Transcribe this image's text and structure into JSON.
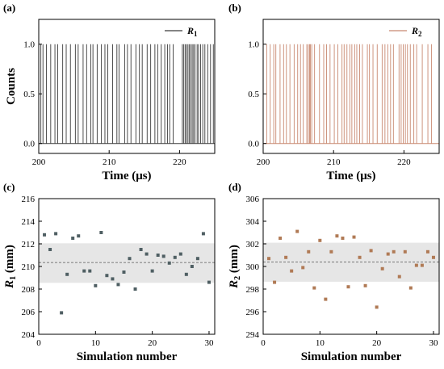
{
  "chart_data": [
    {
      "panel": "(a)",
      "type": "line",
      "subtype": "spike-train",
      "xlabel": "Time (μs)",
      "ylabel": "Counts",
      "xlim": [
        200,
        225
      ],
      "ylim": [
        -0.1,
        1.25
      ],
      "xticks": [
        200,
        210,
        220
      ],
      "yticks": [
        "0.0",
        "0.5",
        "1.0"
      ],
      "legend": {
        "text": "R",
        "sub": "1",
        "placement": "top-right"
      },
      "series": [
        {
          "name": "R1",
          "color": "#3a3a3a",
          "spike_times": [
            200.3,
            200.6,
            201.1,
            201.7,
            202.3,
            202.7,
            203.4,
            203.9,
            204.5,
            205.2,
            205.6,
            206.3,
            206.8,
            207.4,
            207.7,
            208.3,
            208.9,
            209.4,
            209.8,
            210.5,
            211.1,
            211.4,
            212.2,
            212.6,
            213.1,
            213.8,
            214.3,
            214.7,
            215.4,
            215.9,
            216.5,
            216.9,
            217.4,
            217.9,
            218.3,
            218.6,
            219.1,
            220.4,
            220.6,
            220.8,
            221.0,
            221.2,
            221.4,
            221.6,
            221.8,
            222.0,
            222.2,
            222.5,
            222.7,
            223.0,
            223.3,
            223.6,
            224.0,
            224.4,
            224.8
          ]
        }
      ]
    },
    {
      "panel": "(b)",
      "type": "line",
      "subtype": "spike-train",
      "xlabel": "Time (μs)",
      "ylabel": "",
      "xlim": [
        200,
        225
      ],
      "ylim": [
        -0.1,
        1.25
      ],
      "xticks": [
        200,
        210,
        220
      ],
      "yticks": [
        "0.0",
        "0.5",
        "1.0"
      ],
      "legend": {
        "text": "R",
        "sub": "2",
        "placement": "top-right"
      },
      "series": [
        {
          "name": "R2",
          "color": "#c88870",
          "spike_times": [
            200.5,
            201.0,
            201.5,
            201.8,
            202.4,
            202.9,
            203.3,
            203.8,
            204.4,
            204.9,
            205.3,
            205.7,
            206.2,
            206.4,
            206.6,
            206.7,
            206.9,
            207.3,
            208.0,
            208.6,
            209.0,
            209.5,
            210.1,
            210.6,
            211.2,
            211.5,
            211.9,
            212.3,
            212.6,
            213.0,
            213.3,
            213.7,
            214.1,
            214.8,
            215.1,
            215.6,
            216.2,
            216.9,
            217.3,
            217.7,
            218.1,
            218.5,
            219.3,
            219.6,
            219.9,
            220.2,
            220.5,
            220.9,
            221.4,
            221.8,
            222.6,
            223.4,
            223.9
          ]
        }
      ]
    },
    {
      "panel": "(c)",
      "type": "scatter",
      "xlabel": "Simulation number",
      "ylabel": {
        "text": "R",
        "sub": "1",
        "unit": " (mm)"
      },
      "xlim": [
        0,
        31
      ],
      "ylim": [
        204,
        216
      ],
      "xticks": [
        0,
        10,
        20,
        30
      ],
      "yticks": [
        204,
        206,
        208,
        210,
        212,
        214,
        216
      ],
      "band": [
        208.55,
        212.05
      ],
      "mean_line": 210.35,
      "color": "#4f5f63",
      "x": [
        1,
        2,
        3,
        4,
        5,
        6,
        7,
        8,
        9,
        10,
        11,
        12,
        13,
        14,
        15,
        16,
        17,
        18,
        19,
        20,
        21,
        22,
        23,
        24,
        25,
        26,
        27,
        28,
        29,
        30
      ],
      "y": [
        212.8,
        211.5,
        212.9,
        205.9,
        209.3,
        212.5,
        212.7,
        209.6,
        209.6,
        208.3,
        213.0,
        209.2,
        208.9,
        208.4,
        209.5,
        210.7,
        208.0,
        211.5,
        211.1,
        209.6,
        211.0,
        210.9,
        210.3,
        210.8,
        211.1,
        209.3,
        210.0,
        210.7,
        212.9,
        208.6
      ]
    },
    {
      "panel": "(d)",
      "type": "scatter",
      "xlabel": "Simulation number",
      "ylabel": {
        "text": "R",
        "sub": "2",
        "unit": " (mm)"
      },
      "xlim": [
        0,
        31
      ],
      "ylim": [
        294,
        306
      ],
      "xticks": [
        0,
        10,
        20,
        30
      ],
      "yticks": [
        294,
        296,
        298,
        300,
        302,
        304,
        306
      ],
      "band": [
        298.65,
        302.1
      ],
      "mean_line": 300.4,
      "color": "#b07a55",
      "x": [
        1,
        2,
        3,
        4,
        5,
        6,
        7,
        8,
        9,
        10,
        11,
        12,
        13,
        14,
        15,
        16,
        17,
        18,
        19,
        20,
        21,
        22,
        23,
        24,
        25,
        26,
        27,
        28,
        29,
        30
      ],
      "y": [
        300.7,
        298.6,
        302.5,
        300.8,
        299.6,
        303.1,
        299.9,
        301.3,
        298.1,
        302.3,
        297.1,
        301.3,
        302.7,
        302.5,
        298.2,
        302.6,
        300.8,
        298.3,
        301.4,
        296.4,
        299.8,
        301.1,
        301.3,
        299.1,
        301.3,
        298.1,
        300.1,
        300.1,
        301.3,
        300.8
      ]
    }
  ]
}
